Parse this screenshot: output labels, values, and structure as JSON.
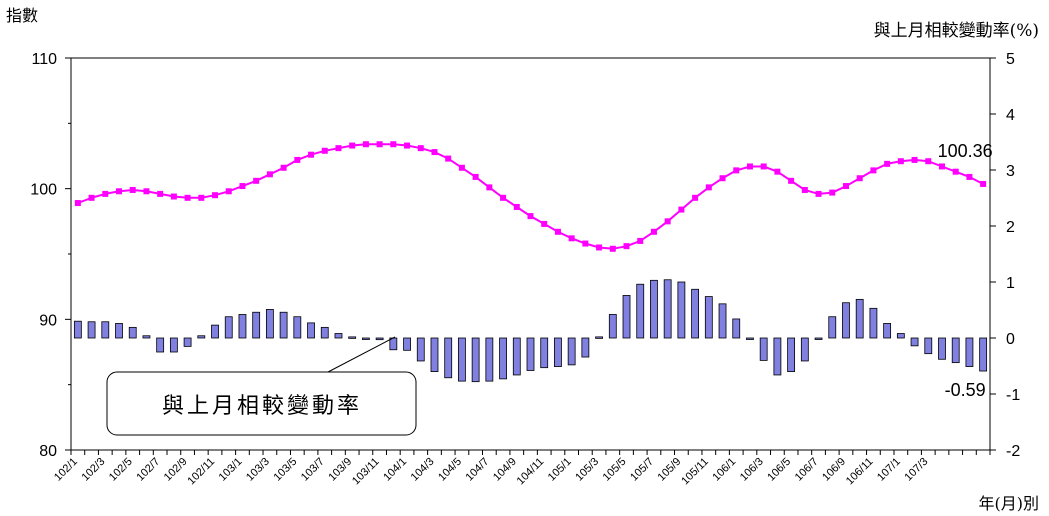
{
  "chart_data": {
    "type": "line+bar",
    "left_axis_title": "指數",
    "right_axis_title": "與上月相較變動率(%)",
    "x_unit_label": "年(月)別",
    "left_ylim": [
      80,
      110
    ],
    "left_ticks": [
      "80",
      "90",
      "100",
      "110"
    ],
    "right_ylim": [
      -2,
      5
    ],
    "right_ticks": [
      "-2",
      "-1",
      "0",
      "1",
      "2",
      "3",
      "4",
      "5"
    ],
    "x_tick_labels": [
      "102/1",
      "102/3",
      "102/5",
      "102/7",
      "102/9",
      "102/11",
      "103/1",
      "103/3",
      "103/5",
      "103/7",
      "103/9",
      "103/11",
      "104/1",
      "104/3",
      "104/5",
      "104/7",
      "104/9",
      "104/11",
      "105/1",
      "105/3",
      "105/5",
      "105/7",
      "105/9",
      "105/11",
      "106/1",
      "106/3",
      "106/5",
      "106/7",
      "106/9",
      "106/11",
      "107/1",
      "107/3"
    ],
    "series": [
      {
        "type": "line",
        "axis": "left",
        "color": "#ff00ff",
        "values": [
          98.9,
          99.3,
          99.6,
          99.8,
          99.9,
          99.8,
          99.6,
          99.4,
          99.3,
          99.3,
          99.5,
          99.8,
          100.2,
          100.6,
          101.1,
          101.6,
          102.2,
          102.6,
          102.9,
          103.1,
          103.3,
          103.4,
          103.4,
          103.4,
          103.3,
          103.1,
          102.8,
          102.3,
          101.6,
          100.9,
          100.1,
          99.3,
          98.6,
          97.9,
          97.3,
          96.7,
          96.2,
          95.8,
          95.5,
          95.4,
          95.6,
          96.0,
          96.7,
          97.5,
          98.4,
          99.3,
          100.1,
          100.8,
          101.4,
          101.7,
          101.7,
          101.3,
          100.6,
          99.9,
          99.6,
          99.7,
          100.2,
          100.8,
          101.4,
          101.9,
          102.1,
          102.2,
          102.1,
          101.7,
          101.3,
          100.9,
          100.36
        ]
      },
      {
        "type": "bar",
        "axis": "right",
        "color": "#8080e0",
        "name": "與上月相較變動率",
        "values": [
          0.3,
          0.29,
          0.29,
          0.26,
          0.19,
          0.04,
          -0.25,
          -0.25,
          -0.15,
          0.04,
          0.23,
          0.38,
          0.42,
          0.46,
          0.51,
          0.46,
          0.38,
          0.27,
          0.19,
          0.08,
          0.02,
          -0.02,
          -0.03,
          -0.21,
          -0.22,
          -0.41,
          -0.6,
          -0.71,
          -0.77,
          -0.78,
          -0.77,
          -0.73,
          -0.66,
          -0.58,
          -0.53,
          -0.51,
          -0.48,
          -0.34,
          0.02,
          0.42,
          0.76,
          0.96,
          1.03,
          1.04,
          1.0,
          0.87,
          0.74,
          0.61,
          0.34,
          -0.01,
          -0.4,
          -0.66,
          -0.6,
          -0.41,
          -0.02,
          0.38,
          0.63,
          0.69,
          0.53,
          0.26,
          0.08,
          -0.14,
          -0.28,
          -0.38,
          -0.44,
          -0.51,
          -0.59
        ]
      }
    ],
    "data_labels": [
      {
        "text": "100.36",
        "series": 0,
        "index": 66
      },
      {
        "text": "-0.59",
        "series": 1,
        "index": 66
      }
    ],
    "annotation": "與上月相較變動率"
  }
}
